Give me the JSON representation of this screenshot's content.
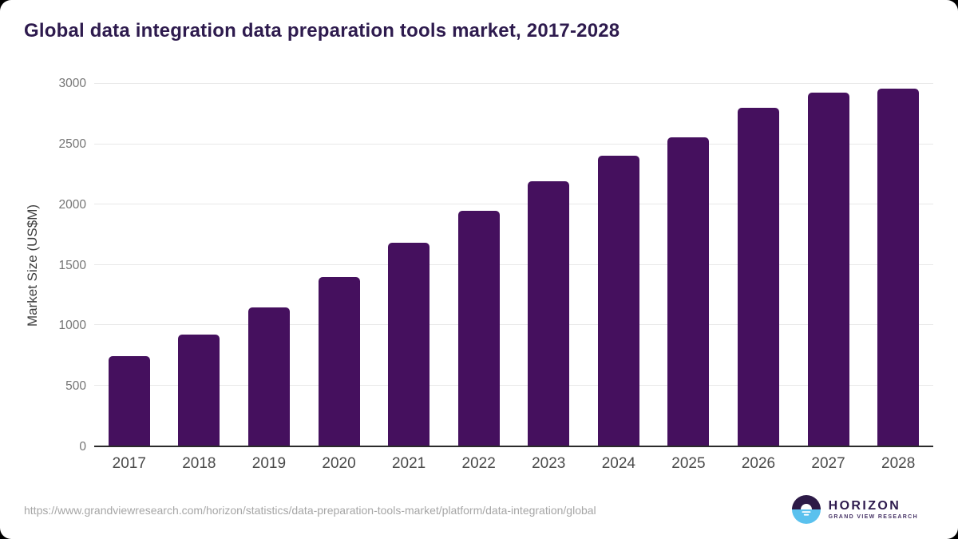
{
  "title": "Global data integration data preparation tools market, 2017-2028",
  "footer": {
    "source_url": "https://www.grandviewresearch.com/horizon/statistics/data-preparation-tools-market/platform/data-integration/global",
    "logo": {
      "name": "HORIZON",
      "subtext": "GRAND VIEW RESEARCH"
    }
  },
  "colors": {
    "bar": "#45105e",
    "title": "#2e1b4e",
    "gridline": "#e8e8e8",
    "axis_line": "#2b2b2b",
    "y_tick_text": "#757575",
    "x_tick_text": "#4a4a4a",
    "y_axis_label_text": "#3d3d3d",
    "source_url_text": "#a6a6a6",
    "logo_dark": "#2d1a47",
    "logo_blue": "#5ac1ee"
  },
  "chart_data": {
    "type": "bar",
    "title": "Global data integration data preparation tools market, 2017-2028",
    "categories": [
      "2017",
      "2018",
      "2019",
      "2020",
      "2021",
      "2022",
      "2023",
      "2024",
      "2025",
      "2026",
      "2027",
      "2028"
    ],
    "values": [
      740,
      920,
      1145,
      1400,
      1680,
      1950,
      2190,
      2405,
      2555,
      2800,
      2930,
      2960
    ],
    "xlabel": "",
    "ylabel": "Market Size (US$M)",
    "ylim": [
      0,
      3000
    ],
    "yticks": [
      0,
      500,
      1000,
      1500,
      2000,
      2500,
      3000
    ],
    "grid": true,
    "legend": false,
    "bar_color": "#45105e"
  }
}
